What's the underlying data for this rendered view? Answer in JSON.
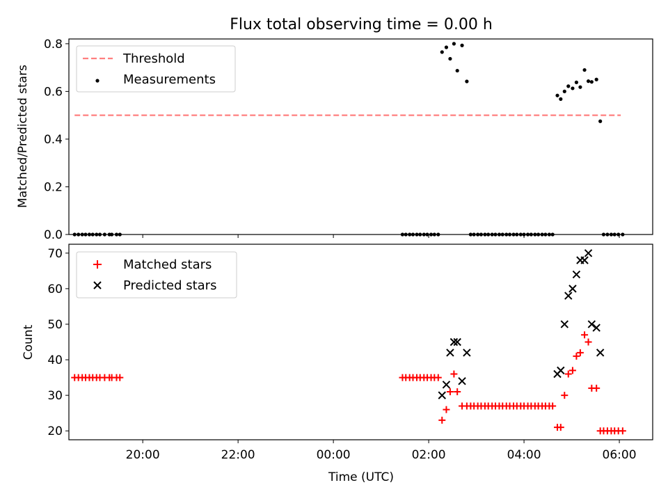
{
  "chart_data": [
    {
      "type": "scatter",
      "title": "Flux total observing time = 0.00 h",
      "xlabel": "",
      "ylabel": "Matched/Predicted stars",
      "xlim": [
        18.45,
        30.7
      ],
      "ylim": [
        0.0,
        0.82
      ],
      "x_ticks": [
        20,
        22,
        24,
        26,
        28,
        30
      ],
      "y_ticks": [
        0.0,
        0.2,
        0.4,
        0.6,
        0.8
      ],
      "y_tick_labels": [
        "0.0",
        "0.2",
        "0.4",
        "0.6",
        "0.8"
      ],
      "legend_position": "top-left",
      "series": [
        {
          "name": "Threshold",
          "kind": "dashed-line",
          "color": "#ff7f7f",
          "x": [
            18.57,
            30.03
          ],
          "y": [
            0.5,
            0.5
          ]
        },
        {
          "name": "Measurements",
          "kind": "dot",
          "color": "#000000",
          "x": [
            18.57,
            18.65,
            18.73,
            18.8,
            18.88,
            18.95,
            19.03,
            19.1,
            19.2,
            19.3,
            19.35,
            19.45,
            19.52,
            25.45,
            25.52,
            25.6,
            25.67,
            25.75,
            25.82,
            25.9,
            25.97,
            26.05,
            26.12,
            26.2,
            26.28,
            26.37,
            26.45,
            26.53,
            26.6,
            26.7,
            26.8,
            26.88,
            26.95,
            27.03,
            27.1,
            27.18,
            27.25,
            27.33,
            27.4,
            27.48,
            27.55,
            27.63,
            27.7,
            27.78,
            27.85,
            27.93,
            28.0,
            28.08,
            28.15,
            28.23,
            28.3,
            28.38,
            28.45,
            28.53,
            28.6,
            28.7,
            28.77,
            28.85,
            28.93,
            29.02,
            29.1,
            29.18,
            29.27,
            29.35,
            29.42,
            29.52,
            29.6,
            29.67,
            29.75,
            29.83,
            29.9,
            29.98,
            30.07
          ],
          "y": [
            0,
            0,
            0,
            0,
            0,
            0,
            0,
            0,
            0,
            0,
            0,
            0,
            0,
            0,
            0,
            0,
            0,
            0,
            0,
            0,
            0,
            0,
            0,
            0,
            0.765,
            0.785,
            0.737,
            0.8,
            0.687,
            0.793,
            0.642,
            0,
            0,
            0,
            0,
            0,
            0,
            0,
            0,
            0,
            0,
            0,
            0,
            0,
            0,
            0,
            0,
            0,
            0,
            0,
            0,
            0,
            0,
            0,
            0,
            0.583,
            0.568,
            0.6,
            0.622,
            0.613,
            0.638,
            0.618,
            0.69,
            0.643,
            0.64,
            0.65,
            0.475,
            0,
            0,
            0,
            0,
            0,
            0
          ]
        }
      ]
    },
    {
      "type": "scatter",
      "title": "",
      "xlabel": "Time (UTC)",
      "ylabel": "Count",
      "xlim": [
        18.45,
        30.7
      ],
      "ylim": [
        17.5,
        72.5
      ],
      "x_ticks": [
        20,
        22,
        24,
        26,
        28,
        30
      ],
      "x_tick_labels": [
        "20:00",
        "22:00",
        "00:00",
        "02:00",
        "04:00",
        "06:00"
      ],
      "y_ticks": [
        20,
        30,
        40,
        50,
        60,
        70
      ],
      "y_tick_labels": [
        "20",
        "30",
        "40",
        "50",
        "60",
        "70"
      ],
      "legend_position": "top-left",
      "series": [
        {
          "name": "Matched stars",
          "kind": "plus",
          "color": "#ff0000",
          "x": [
            18.57,
            18.65,
            18.73,
            18.8,
            18.88,
            18.95,
            19.03,
            19.1,
            19.2,
            19.3,
            19.35,
            19.45,
            19.52,
            25.45,
            25.52,
            25.6,
            25.67,
            25.75,
            25.82,
            25.9,
            25.97,
            26.05,
            26.12,
            26.2,
            26.28,
            26.37,
            26.45,
            26.53,
            26.6,
            26.7,
            26.8,
            26.88,
            26.95,
            27.03,
            27.1,
            27.18,
            27.25,
            27.33,
            27.4,
            27.48,
            27.55,
            27.63,
            27.7,
            27.78,
            27.85,
            27.93,
            28.0,
            28.08,
            28.15,
            28.23,
            28.3,
            28.38,
            28.45,
            28.53,
            28.6,
            28.7,
            28.77,
            28.85,
            28.93,
            29.02,
            29.1,
            29.18,
            29.27,
            29.35,
            29.42,
            29.52,
            29.6,
            29.67,
            29.75,
            29.83,
            29.9,
            29.98,
            30.07
          ],
          "y": [
            35,
            35,
            35,
            35,
            35,
            35,
            35,
            35,
            35,
            35,
            35,
            35,
            35,
            35,
            35,
            35,
            35,
            35,
            35,
            35,
            35,
            35,
            35,
            35,
            23,
            26,
            31,
            36,
            31,
            27,
            27,
            27,
            27,
            27,
            27,
            27,
            27,
            27,
            27,
            27,
            27,
            27,
            27,
            27,
            27,
            27,
            27,
            27,
            27,
            27,
            27,
            27,
            27,
            27,
            27,
            21,
            21,
            30,
            36,
            37,
            41,
            42,
            47,
            45,
            32,
            32,
            20,
            20,
            20,
            20,
            20,
            20,
            20
          ]
        },
        {
          "name": "Predicted stars",
          "kind": "cross",
          "color": "#000000",
          "x": [
            26.28,
            26.37,
            26.45,
            26.53,
            26.6,
            26.7,
            26.8,
            28.7,
            28.77,
            28.85,
            28.93,
            29.02,
            29.1,
            29.18,
            29.27,
            29.35,
            29.42,
            29.52,
            29.6
          ],
          "y": [
            30,
            33,
            42,
            45,
            45,
            34,
            42,
            36,
            37,
            50,
            58,
            60,
            64,
            68,
            68,
            70,
            50,
            49,
            42
          ]
        }
      ]
    }
  ]
}
